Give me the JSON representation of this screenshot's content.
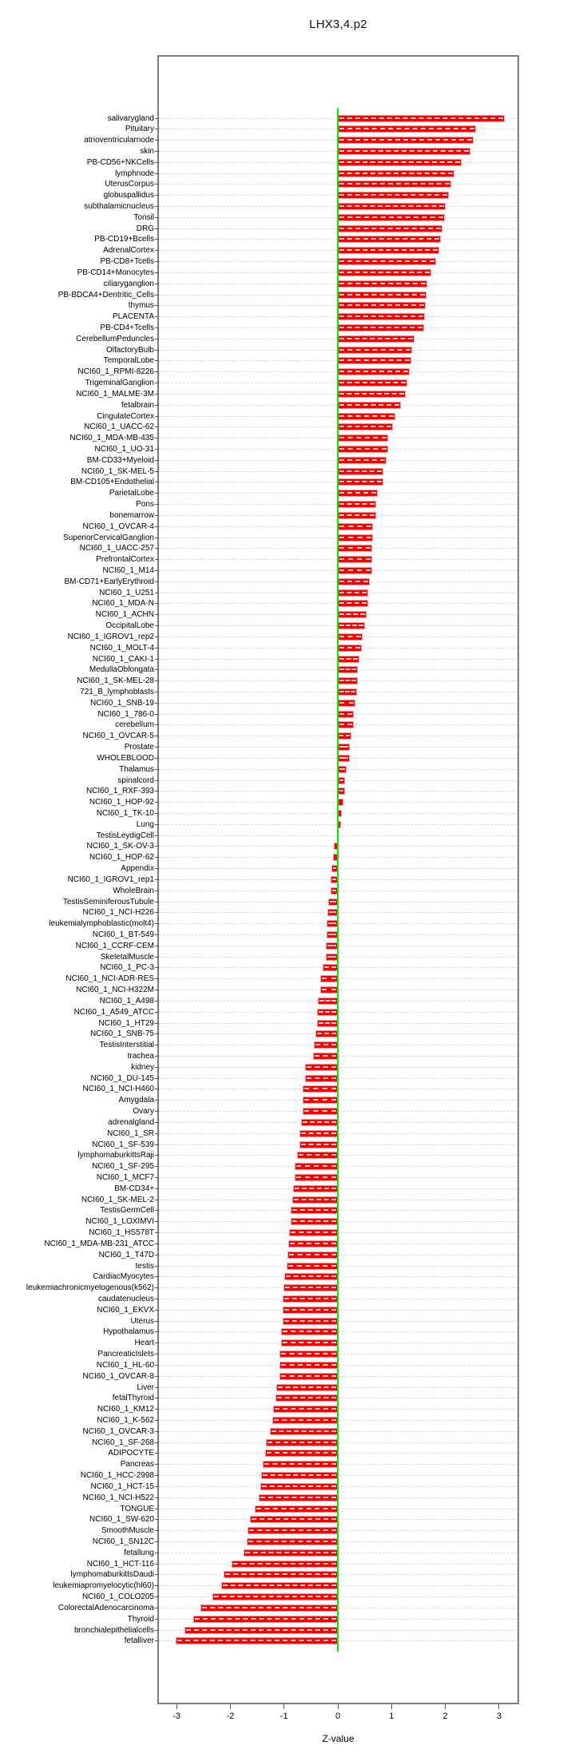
{
  "title": "LHX3,4.p2",
  "colors": {
    "bar": "#fb0000",
    "bar_border": "#ff9a9a",
    "bar_dash": "#ffffff",
    "zero_line": "#00ee00",
    "grid": "#d9d9d9",
    "box_border": "#7d7d7d",
    "text": "#000000"
  },
  "chart_data": {
    "type": "bar",
    "orientation": "horizontal",
    "title": "LHX3,4.p2",
    "xlabel": "Z-value",
    "ylabel": "",
    "xlim": [
      -3.33,
      3.34
    ],
    "x_ticks": [
      -3,
      -2,
      -1,
      0,
      1,
      2,
      3
    ],
    "grid": "horizontal dashed line per category",
    "legend": "none",
    "zero_reference_line": 0,
    "categories": [
      "salivarygland",
      "Pituitary",
      "atrioventricularnode",
      "skin",
      "PB-CD56+NKCells",
      "lymphnode",
      "UterusCorpus",
      "globuspallidus",
      "subthalamicnucleus",
      "Tonsil",
      "DRG",
      "PB-CD19+Bcells",
      "AdrenalCortex",
      "PB-CD8+Tcells",
      "PB-CD14+Monocytes",
      "ciliaryganglion",
      "PB-BDCA4+Dentritic_Cells",
      "thymus",
      "PLACENTA",
      "PB-CD4+Tcells",
      "CerebellumPeduncles",
      "OlfactoryBulb",
      "TemporalLobe",
      "NCI60_1_RPMI-8226",
      "TrigeminalGanglion",
      "NCI60_1_MALME-3M",
      "fetalbrain",
      "CingulateCortex",
      "NCI60_1_UACC-62",
      "NCI60_1_MDA-MB-435",
      "NCI60_1_UO-31",
      "BM-CD33+Myeloid",
      "NCI60_1_SK-MEL-5",
      "BM-CD105+Endothelial",
      "ParietalLobe",
      "Pons",
      "bonemarrow",
      "NCI60_1_OVCAR-4",
      "SuperiorCervicalGanglion",
      "NCI60_1_UACC-257",
      "PrefrontalCortex",
      "NCI60_1_M14",
      "BM-CD71+EarlyErythroid",
      "NCI60_1_U251",
      "NCI60_1_MDA-N",
      "NCI60_1_ACHN",
      "OccipitalLobe",
      "NCI60_1_IGROV1_rep2",
      "NCI60_1_MOLT-4",
      "NCI60_1_CAKI-1",
      "MedullaOblongata",
      "NCI60_1_SK-MEL-28",
      "721_B_lymphoblasts",
      "NCI60_1_SNB-19",
      "NCI60_1_786-0",
      "cerebellum",
      "NCI60_1_OVCAR-5",
      "Prostate",
      "WHOLEBLOOD",
      "Thalamus",
      "spinalcord",
      "NCI60_1_RXF-393",
      "NCI60_1_HOP-92",
      "NCI60_1_TK-10",
      "Lung",
      "TestisLeydigCell",
      "NCI60_1_SK-OV-3",
      "NCI60_1_HOP-62",
      "Appendix",
      "NCI60_1_IGROV1_rep1",
      "WholeBrain",
      "TestisSeminiferousTubule",
      "NCI60_1_NCI-H226",
      "leukemialymphoblastic(molt4)",
      "NCI60_1_BT-549",
      "NCI60_1_CCRF-CEM",
      "SkeletalMuscle",
      "NCI60_1_PC-3",
      "NCI60_1_NCI-ADR-RES",
      "NCI60_1_NCI-H322M",
      "NCI60_1_A498",
      "NCI60_1_A549_ATCC",
      "NCI60_1_HT29",
      "NCI60_1_SNB-75",
      "TestisInterstitial",
      "trachea",
      "kidney",
      "NCI60_1_DU-145",
      "NCI60_1_NCI-H460",
      "Amygdala",
      "Ovary",
      "adrenalgland",
      "NCI60_1_SR",
      "NCI60_1_SF-539",
      "lymphomaburkittsRaji",
      "NCI60_1_SF-295",
      "NCI60_1_MCF7",
      "BM-CD34+",
      "NCI60_1_SK-MEL-2",
      "TestisGermCell",
      "NCI60_1_LOXIMVI",
      "NCI60_1_HS578T",
      "NCI60_1_MDA-MB-231_ATCC",
      "NCI60_1_T47D",
      "testis",
      "CardiacMyocytes",
      "leukemiachronicmyelogenous(k562)",
      "caudatenucleus",
      "NCI60_1_EKVX",
      "Uterus",
      "Hypothalamus",
      "Heart",
      "PancreaticIslets",
      "NCI60_1_HL-60",
      "NCI60_1_OVCAR-8",
      "Liver",
      "fetalThyroid",
      "NCI60_1_KM12",
      "NCI60_1_K-562",
      "NCI60_1_OVCAR-3",
      "NCI60_1_SF-268",
      "ADIPOCYTE",
      "Pancreas",
      "NCI60_1_HCC-2998",
      "NCI60_1_HCT-15",
      "NCI60_1_NCI-H522",
      "TONGUE",
      "NCI60_1_SW-620",
      "SmoothMuscle",
      "NCI60_1_SN12C",
      "fetallung",
      "NCI60_1_HCT-116",
      "lymphomaburkittsDaudi",
      "leukemiapromyelocytic(hl60)",
      "NCI60_1_COLO205",
      "ColorectalAdenocarcinoma",
      "Thyroid",
      "bronchialepithelialcells",
      "fetalliver"
    ],
    "values": [
      3.1,
      2.57,
      2.52,
      2.47,
      2.3,
      2.17,
      2.11,
      2.07,
      2.01,
      1.99,
      1.94,
      1.91,
      1.88,
      1.83,
      1.74,
      1.67,
      1.65,
      1.64,
      1.62,
      1.6,
      1.43,
      1.38,
      1.36,
      1.34,
      1.29,
      1.27,
      1.17,
      1.07,
      1.02,
      0.93,
      0.93,
      0.91,
      0.85,
      0.85,
      0.74,
      0.72,
      0.72,
      0.66,
      0.65,
      0.64,
      0.64,
      0.64,
      0.59,
      0.57,
      0.56,
      0.54,
      0.5,
      0.46,
      0.44,
      0.4,
      0.37,
      0.37,
      0.35,
      0.32,
      0.3,
      0.3,
      0.26,
      0.23,
      0.23,
      0.16,
      0.14,
      0.13,
      0.11,
      0.08,
      0.06,
      -0.01,
      -0.08,
      -0.09,
      -0.12,
      -0.13,
      -0.14,
      -0.18,
      -0.2,
      -0.21,
      -0.21,
      -0.22,
      -0.22,
      -0.28,
      -0.32,
      -0.32,
      -0.37,
      -0.39,
      -0.39,
      -0.42,
      -0.45,
      -0.46,
      -0.61,
      -0.61,
      -0.65,
      -0.65,
      -0.66,
      -0.68,
      -0.72,
      -0.72,
      -0.76,
      -0.8,
      -0.8,
      -0.83,
      -0.85,
      -0.87,
      -0.87,
      -0.9,
      -0.92,
      -0.94,
      -0.95,
      -1.0,
      -1.01,
      -1.02,
      -1.03,
      -1.03,
      -1.06,
      -1.06,
      -1.08,
      -1.08,
      -1.09,
      -1.14,
      -1.16,
      -1.21,
      -1.22,
      -1.26,
      -1.33,
      -1.35,
      -1.4,
      -1.43,
      -1.44,
      -1.47,
      -1.54,
      -1.63,
      -1.68,
      -1.7,
      -1.76,
      -1.98,
      -2.12,
      -2.17,
      -2.33,
      -2.55,
      -2.69,
      -2.86,
      -3.02
    ]
  }
}
